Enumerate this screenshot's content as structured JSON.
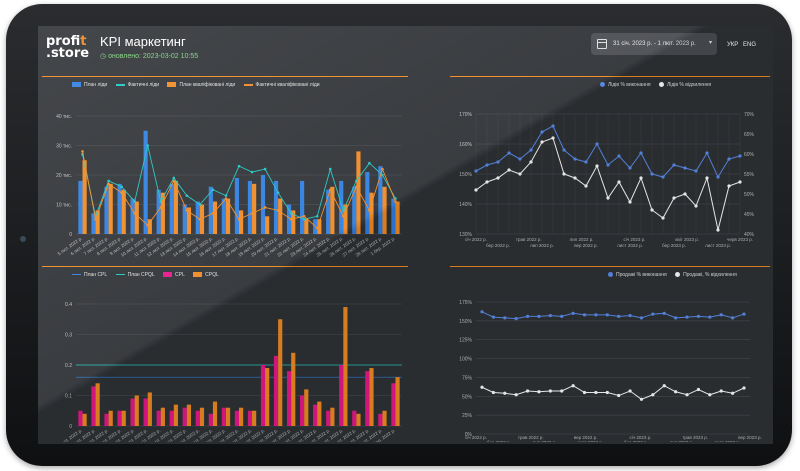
{
  "header": {
    "logo_top": "prof",
    "logo_accent": "it",
    "logo_bottom": ".store",
    "title": "KPI маркетинг",
    "updated": "оновлено: 2023-03-02 10:55",
    "date_range": "31 січ. 2023 р. - 1 лют. 2023 р.",
    "dropdown_icon": "chevron-down-icon",
    "lang_ukr": "УКР",
    "lang_eng": "ENG"
  },
  "colors": {
    "orange": "#f08a24",
    "blue": "#2f7fe0",
    "cyan": "#1fc6c0",
    "pink": "#e8178a",
    "light_blue": "#5b8ef0",
    "white": "#ffffff"
  },
  "panel1": {
    "legend": [
      "План ліди",
      "Фактичні ліди",
      "План кваліфіковані ліди",
      "Фактичні кваліфіковані ліди"
    ]
  },
  "panel2": {
    "legend": [
      "Лідів % виконання",
      "Лідів % відхилення"
    ]
  },
  "panel3": {
    "legend": [
      "План CPL",
      "План CPQL",
      "CPL",
      "CPQL"
    ]
  },
  "panel4": {
    "legend": [
      "Продажі % виконання",
      "Продажі, % відхилення"
    ]
  },
  "chart_data": [
    {
      "type": "bar",
      "yticks": [
        "0",
        "10 тис.",
        "20 тис.",
        "30 тис.",
        "40 тис."
      ],
      "ylim": [
        0,
        40
      ],
      "xticks": [
        "5 лют. 2022 р.",
        "6 лют. 2022 р.",
        "7 лют. 2022 р.",
        "8 лют. 2022 р.",
        "9 лют. 2022 р.",
        "10 лют. 2022 р.",
        "11 лют. 2022 р.",
        "12 лют. 2022 р.",
        "13 лют. 2022 р.",
        "14 лют. 2022 р.",
        "15 лют. 2022 р.",
        "16 лют. 2022 р.",
        "17 лют. 2022 р.",
        "18 лют. 2022 р.",
        "19 лют. 2022 р.",
        "20 лют. 2022 р.",
        "21 лют. 2022 р.",
        "22 лют. 2022 р.",
        "23 лют. 2022 р.",
        "24 лют. 2022 р.",
        "25 лют. 2022 р.",
        "26 лют. 2022 р.",
        "27 лют. 2022 р.",
        "28 лют. 2022 р.",
        "1 бер. 2022 р."
      ],
      "series": [
        {
          "name": "План ліди",
          "values": [
            18,
            7,
            16,
            17,
            12,
            35,
            15,
            17,
            10,
            11,
            16,
            12,
            19,
            18,
            20,
            18,
            10,
            18,
            5,
            15,
            18,
            16,
            21,
            23,
            12
          ]
        },
        {
          "name": "План кваліфіковані ліди",
          "values": [
            25,
            8,
            17,
            15,
            11,
            5,
            14,
            18,
            9,
            10,
            11,
            12,
            8,
            17,
            6,
            12,
            8,
            5,
            5,
            16,
            10,
            28,
            14,
            16,
            11
          ]
        },
        {
          "name": "Фактичні ліди",
          "values": [
            27,
            6,
            18,
            16,
            11,
            30,
            11,
            19,
            13,
            10,
            15,
            13,
            23,
            21,
            22,
            14,
            7,
            5,
            6,
            22,
            8,
            18,
            24,
            20,
            12
          ]
        },
        {
          "name": "Фактичні кваліфіковані ліди",
          "values": [
            28,
            5,
            17,
            14,
            7,
            3,
            9,
            18,
            8,
            5,
            7,
            12,
            5,
            7,
            9,
            8,
            5,
            6,
            2,
            15,
            6,
            16,
            8,
            22,
            11
          ]
        }
      ]
    },
    {
      "type": "line",
      "yticks_left": [
        "130%",
        "140%",
        "150%",
        "160%",
        "170%"
      ],
      "ylim_left": [
        130,
        170
      ],
      "yticks_right": [
        "40%",
        "45%",
        "50%",
        "55%",
        "60%",
        "65%",
        "70%"
      ],
      "ylim_right": [
        40,
        70
      ],
      "xticks": [
        "січ 2022 р.",
        "трав 2022 р.",
        "лип 2022 р.",
        "січ 2023 р.",
        "квіт 2023 р.",
        "черв 2023 р."
      ],
      "xticks2": [
        "бер 2022 р.",
        "лип 2022 р.",
        "вер 2022 р.",
        "лист 2022 р.",
        "бер 2023 р.",
        "лист 2023 р."
      ],
      "series": [
        {
          "name": "Лідів % виконання",
          "values": [
            151,
            153,
            154,
            157,
            155,
            158,
            164,
            166,
            158,
            155,
            154,
            160,
            153,
            156,
            152,
            157,
            150,
            149,
            153,
            152,
            151,
            157,
            149,
            155,
            156
          ]
        },
        {
          "name": "Лідів % відхилення",
          "values": [
            51,
            53,
            54,
            56,
            55,
            58,
            63,
            64,
            55,
            54,
            52,
            57,
            49,
            53,
            48,
            54,
            46,
            44,
            49,
            50,
            47,
            54,
            41,
            52,
            53
          ]
        }
      ]
    },
    {
      "type": "bar",
      "yticks": [
        "0",
        "0.1",
        "0.2",
        "0.3",
        "0.4"
      ],
      "ylim": [
        0,
        0.4
      ],
      "xticks": [
        "5 лют. 2022 р.",
        "6 лют. 2022 р.",
        "7 лют. 2022 р.",
        "8 лют. 2022 р.",
        "9 лют. 2022 р.",
        "10 лют. 2022 р.",
        "11 лют. 2022 р.",
        "12 лют. 2022 р.",
        "13 лют. 2022 р.",
        "14 лют. 2022 р.",
        "15 лют. 2022 р.",
        "16 лют. 2022 р.",
        "17 лют. 2022 р.",
        "18 лют. 2022 р.",
        "19 лют. 2022 р.",
        "20 лют. 2022 р.",
        "21 лют. 2022 р.",
        "22 лют. 2022 р.",
        "23 лют. 2022 р.",
        "24 лют. 2022 р.",
        "25 лют. 2022 р.",
        "26 лют. 2022 р.",
        "27 лют. 2022 р.",
        "28 лют. 2022 р.",
        "1 бер. 2022 р."
      ],
      "series": [
        {
          "name": "План CPL",
          "values": [
            0.16,
            0.16,
            0.16,
            0.16,
            0.16,
            0.16,
            0.16,
            0.16,
            0.16,
            0.16,
            0.16,
            0.16,
            0.16,
            0.16,
            0.16,
            0.16,
            0.16,
            0.16,
            0.16,
            0.16,
            0.16,
            0.16,
            0.16,
            0.16,
            0.16
          ]
        },
        {
          "name": "План CPQL",
          "values": [
            0.2,
            0.2,
            0.2,
            0.2,
            0.2,
            0.2,
            0.2,
            0.2,
            0.2,
            0.2,
            0.2,
            0.2,
            0.2,
            0.2,
            0.2,
            0.2,
            0.2,
            0.2,
            0.2,
            0.2,
            0.2,
            0.2,
            0.2,
            0.2,
            0.2
          ]
        },
        {
          "name": "CPL",
          "values": [
            0.05,
            0.13,
            0.04,
            0.05,
            0.09,
            0.09,
            0.05,
            0.05,
            0.06,
            0.05,
            0.04,
            0.06,
            0.05,
            0.05,
            0.2,
            0.23,
            0.18,
            0.1,
            0.07,
            0.05,
            0.2,
            0.05,
            0.18,
            0.04,
            0.14
          ]
        },
        {
          "name": "CPQL",
          "values": [
            0.04,
            0.14,
            0.05,
            0.05,
            0.1,
            0.11,
            0.06,
            0.07,
            0.07,
            0.06,
            0.08,
            0.06,
            0.06,
            0.05,
            0.19,
            0.35,
            0.24,
            0.12,
            0.08,
            0.06,
            0.39,
            0.04,
            0.19,
            0.05,
            0.16
          ]
        }
      ]
    },
    {
      "type": "line",
      "yticks": [
        "0%",
        "25%",
        "50%",
        "75%",
        "100%",
        "125%",
        "150%",
        "175%"
      ],
      "ylim": [
        0,
        175
      ],
      "xticks": [
        "січ 2022 р.",
        "трав 2022 р.",
        "вер 2022 р.",
        "січ 2023 р.",
        "трав 2023 р.",
        "вер 2023 р."
      ],
      "xticks2": [
        "бер 2022 р.",
        "лип 2022 р.",
        "лист 2022 р.",
        "бер 2023 р.",
        "лип 2023 р.",
        "лист 2023 р."
      ],
      "series": [
        {
          "name": "Продажі % виконання",
          "values": [
            162,
            155,
            154,
            153,
            156,
            156,
            157,
            156,
            160,
            158,
            158,
            158,
            156,
            157,
            154,
            159,
            160,
            154,
            155,
            156,
            155,
            158,
            154,
            159
          ]
        },
        {
          "name": "Продажі, % відхилення",
          "values": [
            62,
            55,
            54,
            52,
            57,
            56,
            57,
            57,
            64,
            55,
            55,
            55,
            51,
            57,
            46,
            52,
            64,
            56,
            52,
            59,
            52,
            57,
            54,
            61
          ]
        }
      ]
    }
  ]
}
